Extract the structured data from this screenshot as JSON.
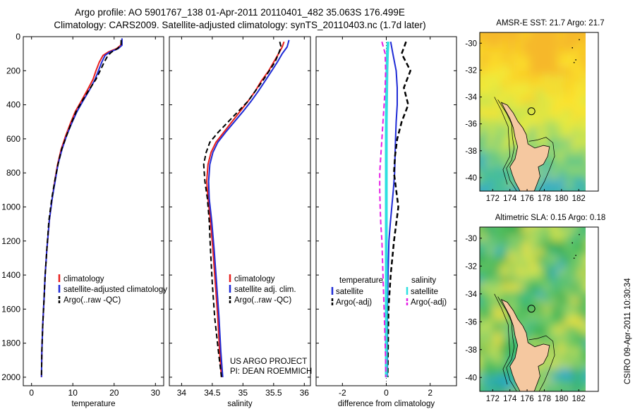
{
  "header": {
    "line1": "Argo profile: AO 5901767_138 01-Apr-2011 20110401_482 35.063S 176.499E",
    "line2": "Climatology: CARS2009. Satellite-adjusted climatology: synTS_20110403.nc (1.7d later)"
  },
  "side_text": "CSIRO 09-Apr-2011 10:30:34",
  "project_note": {
    "line1": "US ARGO PROJECT",
    "line2": "PI: DEAN ROEMMICH"
  },
  "colors": {
    "climatology": "#e8201e",
    "satellite": "#1f2bd6",
    "argo": "#000000",
    "salinity_diff": "#2ee0e0",
    "salinity_argo_diff": "#e61ee6",
    "land": "#f5c8a0"
  },
  "chart_data": [
    {
      "type": "line",
      "xlabel": "temperature",
      "ylabel": "",
      "xlim": [
        -2,
        32
      ],
      "ylim": [
        2050,
        0
      ],
      "xticks": [
        0,
        10,
        20,
        30
      ],
      "yticks": [
        0,
        200,
        400,
        600,
        800,
        1000,
        1200,
        1400,
        1600,
        1800,
        2000
      ],
      "legend_position": "lower-right",
      "series": [
        {
          "name": "climatology",
          "color_key": "climatology",
          "dash": "solid",
          "x": [
            21.8,
            21.6,
            20.6,
            18.6,
            17.3,
            16.4,
            15.6,
            14.9,
            13.6,
            12.0,
            10.6,
            9.4,
            8.3,
            7.2,
            6.3,
            5.6,
            5.0,
            4.3,
            3.7,
            3.3,
            3.0,
            2.7,
            2.5,
            2.4
          ],
          "y": [
            20,
            50,
            70,
            90,
            110,
            150,
            200,
            250,
            310,
            380,
            440,
            510,
            580,
            660,
            750,
            850,
            950,
            1080,
            1250,
            1400,
            1550,
            1700,
            1850,
            2000
          ]
        },
        {
          "name": "satellite-adjusted climatology",
          "color_key": "satellite",
          "dash": "solid",
          "x": [
            21.9,
            21.9,
            21.0,
            19.0,
            17.8,
            17.0,
            16.2,
            15.4,
            14.1,
            12.4,
            11.0,
            9.7,
            8.5,
            7.4,
            6.4,
            5.7,
            5.0,
            4.3,
            3.7,
            3.3,
            3.0,
            2.7,
            2.5,
            2.4
          ],
          "y": [
            10,
            50,
            70,
            90,
            110,
            150,
            200,
            250,
            310,
            380,
            440,
            510,
            580,
            660,
            750,
            850,
            950,
            1080,
            1250,
            1400,
            1550,
            1700,
            1850,
            2000
          ]
        },
        {
          "name": "Argo(..raw -QC)",
          "color_key": "argo",
          "dash": "dashed",
          "x": [
            21.7,
            21.7,
            20.8,
            19.4,
            18.5,
            17.6,
            16.6,
            15.6,
            14.0,
            12.2,
            10.8,
            9.6,
            8.5,
            7.3,
            6.4,
            5.6,
            4.9,
            4.2,
            3.7,
            3.3,
            3.0,
            2.7,
            2.5,
            2.4
          ],
          "y": [
            20,
            50,
            70,
            90,
            110,
            150,
            200,
            250,
            310,
            380,
            440,
            510,
            580,
            660,
            750,
            850,
            950,
            1080,
            1250,
            1400,
            1550,
            1700,
            1850,
            2000
          ]
        }
      ]
    },
    {
      "type": "line",
      "xlabel": "salinity",
      "ylabel": "",
      "xlim": [
        33.8,
        36.1
      ],
      "ylim": [
        2050,
        0
      ],
      "xticks": [
        34,
        34.5,
        35,
        35.5,
        36
      ],
      "legend_position": "lower-right",
      "series": [
        {
          "name": "climatology",
          "color_key": "climatology",
          "dash": "solid",
          "x": [
            35.67,
            35.64,
            35.58,
            35.5,
            35.42,
            35.3,
            35.2,
            35.08,
            34.95,
            34.82,
            34.69,
            34.56,
            34.48,
            34.43,
            34.41,
            34.43,
            34.47,
            34.51,
            34.55,
            34.59,
            34.62,
            34.65
          ],
          "y": [
            30,
            60,
            100,
            150,
            200,
            260,
            320,
            380,
            440,
            500,
            560,
            620,
            680,
            750,
            850,
            950,
            1080,
            1250,
            1450,
            1650,
            1850,
            2000
          ]
        },
        {
          "name": "satellite adj. clim.",
          "color_key": "satellite",
          "dash": "solid",
          "x": [
            35.75,
            35.72,
            35.64,
            35.56,
            35.47,
            35.36,
            35.25,
            35.13,
            35.0,
            34.86,
            34.72,
            34.59,
            34.51,
            34.46,
            34.44,
            34.45,
            34.49,
            34.53,
            34.57,
            34.61,
            34.64,
            34.67
          ],
          "y": [
            20,
            60,
            100,
            150,
            200,
            260,
            320,
            380,
            440,
            500,
            560,
            620,
            680,
            750,
            850,
            950,
            1080,
            1250,
            1450,
            1650,
            1850,
            2000
          ]
        },
        {
          "name": "Argo(..raw -QC)",
          "color_key": "argo",
          "dash": "dashed",
          "x": [
            35.6,
            35.62,
            35.58,
            35.52,
            35.43,
            35.32,
            35.2,
            35.08,
            34.92,
            34.76,
            34.6,
            34.46,
            34.4,
            34.36,
            34.38,
            34.42,
            34.45,
            34.47,
            34.5,
            34.54,
            34.6,
            34.65
          ],
          "y": [
            30,
            60,
            100,
            150,
            200,
            260,
            320,
            380,
            440,
            500,
            560,
            620,
            680,
            750,
            850,
            950,
            1080,
            1250,
            1450,
            1650,
            1850,
            2000
          ]
        }
      ]
    },
    {
      "type": "line",
      "xlabel": "difference from climatology",
      "ylabel": "",
      "xlim": [
        -3.2,
        3.2
      ],
      "ylim": [
        2050,
        0
      ],
      "xticks": [
        -2,
        0,
        2
      ],
      "legend_columns": [
        {
          "title": "temperature",
          "entries": [
            "satellite",
            "Argo(-adj)"
          ]
        },
        {
          "title": "salinity",
          "entries": [
            "satellite",
            "Argo(-adj)"
          ]
        }
      ],
      "series": [
        {
          "name": "temperature satellite",
          "color_key": "satellite",
          "dash": "solid",
          "x": [
            0.2,
            0.3,
            0.45,
            0.5,
            0.5,
            0.45,
            0.42,
            0.4,
            0.38,
            0.32,
            0.25,
            0.18,
            0.12,
            0.08,
            0.05,
            0.05,
            0.05,
            0.05
          ],
          "y": [
            30,
            100,
            200,
            300,
            400,
            500,
            600,
            700,
            800,
            900,
            1000,
            1100,
            1200,
            1400,
            1600,
            1800,
            1900,
            2000
          ]
        },
        {
          "name": "temperature Argo(-adj)",
          "color_key": "argo",
          "dash": "dashed",
          "x": [
            0.9,
            0.7,
            1.1,
            0.8,
            1.0,
            0.7,
            0.5,
            0.4,
            0.35,
            0.45,
            0.55,
            0.45,
            0.35,
            0.2,
            0.1,
            0.08,
            0.07,
            0.06
          ],
          "y": [
            30,
            100,
            200,
            300,
            400,
            500,
            600,
            700,
            800,
            900,
            1000,
            1100,
            1200,
            1400,
            1600,
            1800,
            1900,
            2000
          ]
        },
        {
          "name": "salinity satellite",
          "color_key": "salinity_diff",
          "dash": "solid",
          "x": [
            0.08,
            0.05,
            0.03,
            0.02,
            0.01,
            0.0,
            0.0,
            0.0,
            0.0,
            0.0,
            0.0,
            0.0,
            0.0,
            0.0,
            0.0,
            0.0,
            0.0,
            0.0
          ],
          "y": [
            30,
            100,
            200,
            300,
            400,
            500,
            600,
            700,
            800,
            900,
            1000,
            1100,
            1200,
            1400,
            1600,
            1800,
            1900,
            2000
          ]
        },
        {
          "name": "salinity Argo(-adj)",
          "color_key": "salinity_argo_diff",
          "dash": "dashed",
          "x": [
            -0.2,
            -0.05,
            -0.03,
            -0.05,
            -0.1,
            -0.15,
            -0.2,
            -0.25,
            -0.3,
            -0.3,
            -0.28,
            -0.25,
            -0.2,
            -0.15,
            -0.1,
            -0.05,
            -0.03,
            -0.02
          ],
          "y": [
            30,
            100,
            200,
            300,
            400,
            500,
            600,
            700,
            800,
            900,
            1000,
            1100,
            1200,
            1400,
            1600,
            1800,
            1900,
            2000
          ]
        }
      ]
    },
    {
      "type": "heatmap",
      "title": "AMSR-E SST: 21.7 Argo: 21.7",
      "xlim": [
        170.5,
        182.8
      ],
      "ylim": [
        -41,
        -29.2
      ],
      "xticks": [
        172,
        174,
        176,
        178,
        180,
        182
      ],
      "yticks": [
        -30,
        -32,
        -34,
        -36,
        -38,
        -40
      ],
      "profile_location": [
        176.5,
        -35.06
      ]
    },
    {
      "type": "heatmap",
      "title": "Altimetric SLA: 0.15 Argo: 0.18",
      "xlim": [
        170.5,
        182.8
      ],
      "ylim": [
        -41,
        -29.2
      ],
      "xticks": [
        172,
        174,
        176,
        178,
        180,
        182
      ],
      "yticks": [
        -30,
        -32,
        -34,
        -36,
        -38,
        -40
      ],
      "profile_location": [
        176.5,
        -35.06
      ]
    }
  ]
}
